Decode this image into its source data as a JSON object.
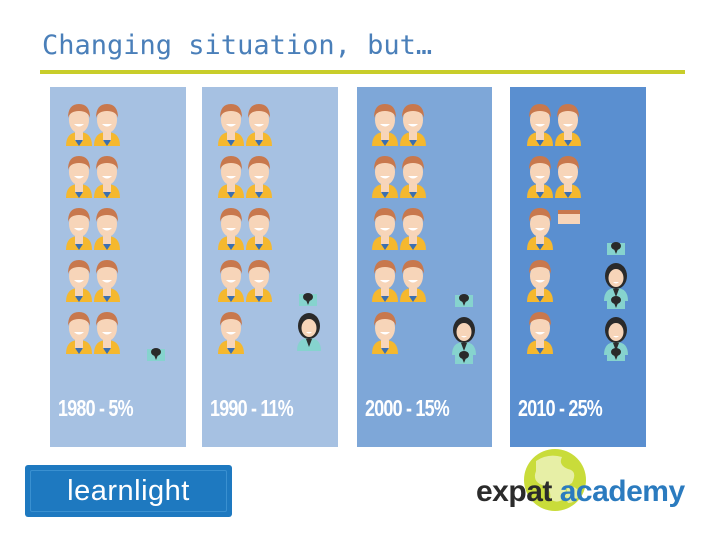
{
  "slide": {
    "title": "Changing situation, but…"
  },
  "panels": [
    {
      "label": "1980 - 5%",
      "male": 10,
      "female_icons": 1
    },
    {
      "label": "1990 - 11%",
      "male": 9,
      "female_icons": 2
    },
    {
      "label": "2000 - 15%",
      "male": 9,
      "female_icons": 3
    },
    {
      "label": "2010 - 25%",
      "male": 7,
      "female_icons": 5
    }
  ],
  "logos": {
    "left": "learnlight",
    "right_part1": "expat",
    "right_part2": "academy"
  },
  "colors": {
    "panel_light": "#a6c1e2",
    "panel_mid": "#7ea7d8",
    "panel_dark": "#5a8fd0",
    "male_body": "#f5b82e",
    "female_body": "#86d3ce",
    "rule": "#c8cd2a"
  }
}
